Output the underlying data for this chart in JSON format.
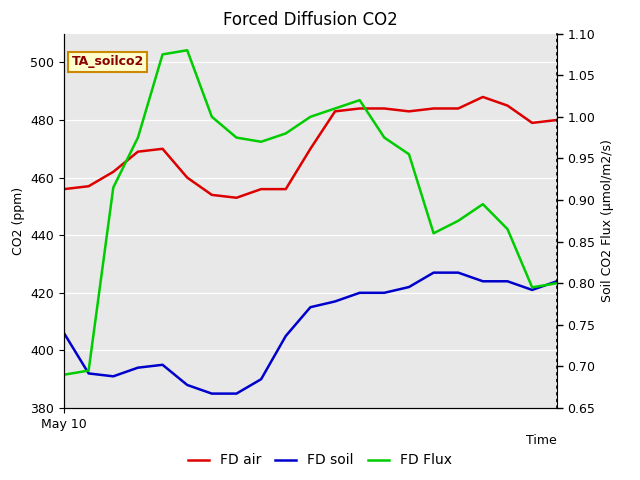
{
  "title": "Forced Diffusion CO2",
  "ylabel_left": "CO2 (ppm)",
  "ylabel_right": "Soil CO2 Flux (μmol/m2/s)",
  "annotation": "TA_soilco2",
  "x": [
    0,
    1,
    2,
    3,
    4,
    5,
    6,
    7,
    8,
    9,
    10,
    11,
    12,
    13,
    14,
    15,
    16,
    17,
    18,
    19,
    20
  ],
  "fd_air": [
    456,
    457,
    462,
    469,
    470,
    460,
    454,
    453,
    456,
    456,
    470,
    483,
    484,
    484,
    483,
    484,
    484,
    488,
    485,
    479,
    480
  ],
  "fd_soil": [
    406,
    392,
    391,
    394,
    395,
    388,
    385,
    385,
    390,
    405,
    415,
    417,
    420,
    420,
    422,
    427,
    427,
    424,
    424,
    421,
    424
  ],
  "fd_flux": [
    0.69,
    0.695,
    0.915,
    0.975,
    1.075,
    1.08,
    1.0,
    0.975,
    0.97,
    0.98,
    1.0,
    1.01,
    1.02,
    0.975,
    0.955,
    0.86,
    0.875,
    0.895,
    0.865,
    0.795,
    0.8
  ],
  "ylim_left": [
    380,
    510
  ],
  "ylim_right": [
    0.65,
    1.1
  ],
  "yticks_left": [
    380,
    400,
    420,
    440,
    460,
    480,
    500
  ],
  "yticks_right": [
    0.65,
    0.7,
    0.75,
    0.8,
    0.85,
    0.9,
    0.95,
    1.0,
    1.05,
    1.1
  ],
  "color_air": "#dd0000",
  "color_soil": "#0000cc",
  "color_flux": "#00cc00",
  "bg_color": "#e8e8e8",
  "x_tick_label": "May 10",
  "annotation_box_color": "#ffffcc",
  "annotation_border_color": "#cc8800",
  "annotation_text_color": "#8b0000",
  "grid_color": "#ffffff",
  "fig_bg": "#ffffff",
  "linewidth": 1.8
}
